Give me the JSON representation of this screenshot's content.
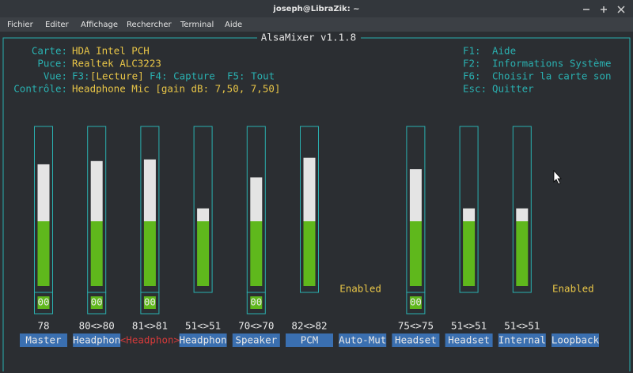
{
  "window": {
    "title": "joseph@LibraZik: ~"
  },
  "menu": [
    "Fichier",
    "Editer",
    "Affichage",
    "Rechercher",
    "Terminal",
    "Aide"
  ],
  "mixer": {
    "title": "AlsaMixer v1.1.8",
    "info": [
      {
        "label": "Carte:",
        "value": "HDA Intel PCH"
      },
      {
        "label": "Puce:",
        "value": "Realtek ALC3223"
      },
      {
        "label": "Contrôle:",
        "value": "Headphone Mic [gain dB: 7,50, 7,50]"
      }
    ],
    "view": {
      "label": "Vue:",
      "f3": "F3:",
      "current": "[Lecture]",
      "f4": "F4: Capture",
      "f5": "F5: Tout"
    },
    "keys": [
      {
        "key": "F1:",
        "action": "Aide"
      },
      {
        "key": "F2:",
        "action": "Informations Système"
      },
      {
        "key": "F6:",
        "action": "Choisir la carte son"
      },
      {
        "key": "Esc:",
        "action": "Quitter"
      }
    ],
    "channels": [
      {
        "name": "Master",
        "label": "78",
        "level": 78,
        "mute": "00"
      },
      {
        "name": "Headphon",
        "label": "80<>80",
        "level": 80,
        "mute": "00"
      },
      {
        "name": "<Headphon>",
        "label": "81<>81",
        "level": 81,
        "mute": "00",
        "selected": true
      },
      {
        "name": "Headphon",
        "label": "51<>51",
        "level": 51
      },
      {
        "name": "Speaker",
        "label": "70<>70",
        "level": 70,
        "mute": "00"
      },
      {
        "name": "PCM",
        "label": "82<>82",
        "level": 82
      },
      {
        "name": "Auto-Mut",
        "state": "Enabled"
      },
      {
        "name": "Headset",
        "label": "75<>75",
        "level": 75,
        "mute": "00"
      },
      {
        "name": "Headset",
        "label": "51<>51",
        "level": 51
      },
      {
        "name": "Internal",
        "label": "51<>51",
        "level": 51
      },
      {
        "name": "Loopback",
        "state": "Enabled"
      }
    ]
  }
}
